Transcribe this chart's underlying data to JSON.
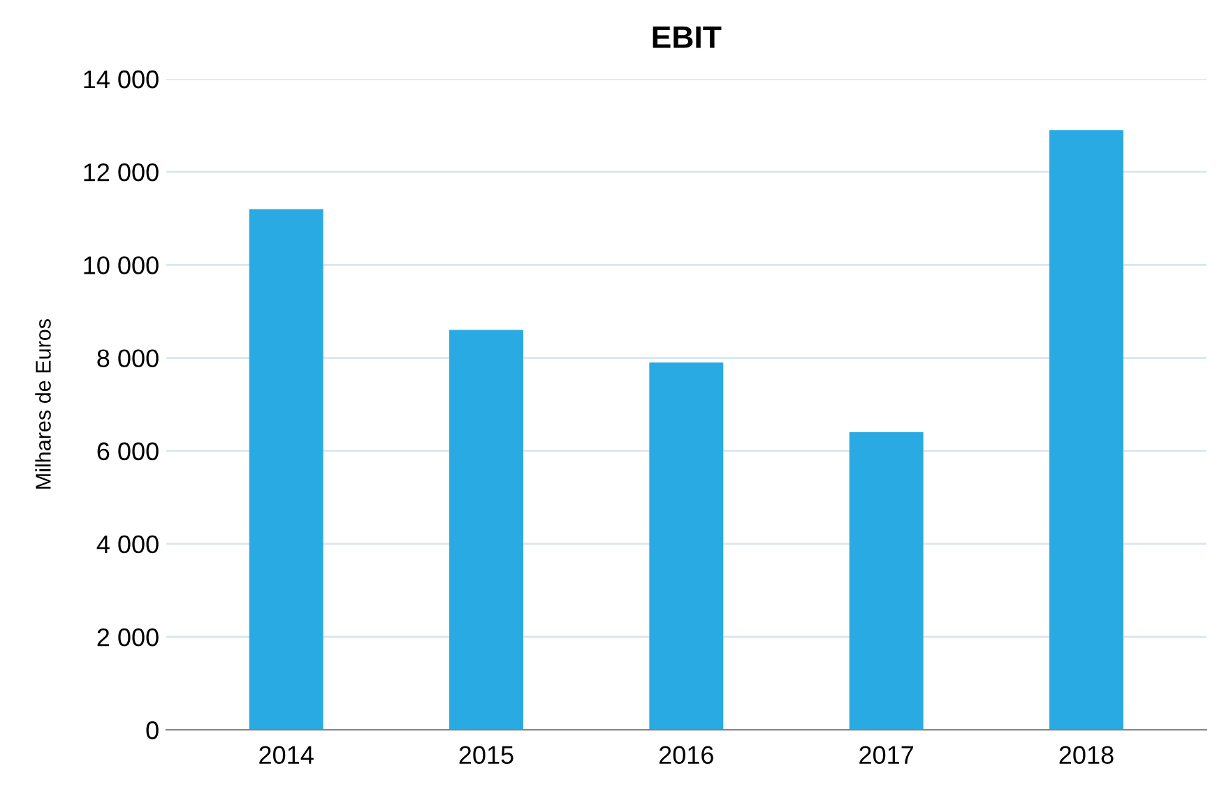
{
  "chart_data": {
    "type": "bar",
    "title": "EBIT",
    "ylabel": "Milhares de Euros",
    "categories": [
      "2014",
      "2015",
      "2016",
      "2017",
      "2018"
    ],
    "values": [
      11200,
      8600,
      7900,
      6400,
      12900
    ],
    "color": "#2aaae2",
    "ylim": [
      0,
      14000
    ],
    "yticks": [
      0,
      {
        "value": 2000,
        "label": "2 000"
      },
      {
        "value": 4000,
        "label": "4 000"
      },
      {
        "value": 6000,
        "label": "6 000"
      },
      {
        "value": 8000,
        "label": "8 000"
      },
      {
        "value": 10000,
        "label": "10 000"
      },
      {
        "value": 12000,
        "label": "12 000"
      },
      {
        "value": 14000,
        "label": "14 000"
      }
    ],
    "grid": "y",
    "legend": false
  }
}
